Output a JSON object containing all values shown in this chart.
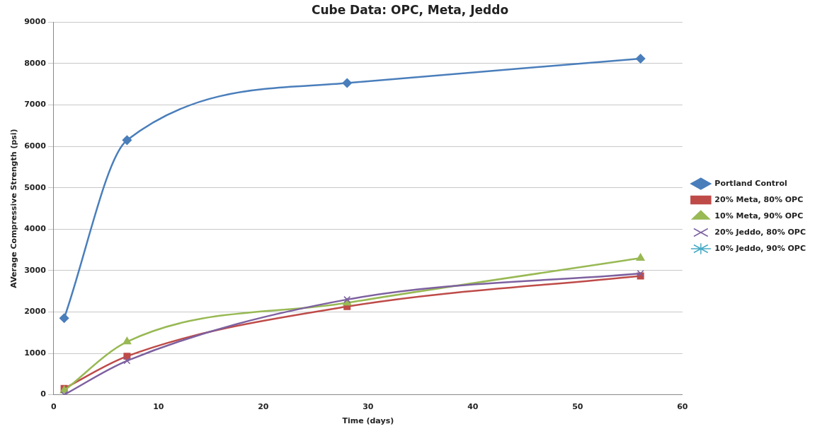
{
  "chart_data": {
    "type": "line",
    "title": "Cube Data: OPC, Meta, Jeddo",
    "xlabel": "Time (days)",
    "ylabel": "AVerage Compressive Strength (psi)",
    "x": [
      1,
      7,
      28,
      56
    ],
    "series": [
      {
        "name": "Portland Control",
        "color": "#4a7ebb",
        "marker": "diamond",
        "values": [
          1850,
          6150,
          7530,
          8120
        ]
      },
      {
        "name": "20% Meta, 80% OPC",
        "color": "#be4b48",
        "marker": "square",
        "values": [
          150,
          930,
          2130,
          2870
        ]
      },
      {
        "name": "10% Meta, 90% OPC",
        "color": "#98b954",
        "marker": "triangle",
        "values": [
          100,
          1280,
          2220,
          3300
        ]
      },
      {
        "name": "20% Jeddo, 80% OPC",
        "color": "#7d60a0",
        "marker": "cross",
        "values": [
          0,
          820,
          2300,
          2930
        ]
      },
      {
        "name": "10% Jeddo, 90% OPC",
        "color": "#46aac5",
        "marker": "star",
        "values": [
          null,
          null,
          null,
          null
        ]
      }
    ],
    "xlim": [
      0,
      60
    ],
    "xticks": [
      0,
      10,
      20,
      30,
      40,
      50,
      60
    ],
    "ylim": [
      0,
      9000
    ],
    "yticks": [
      0,
      1000,
      2000,
      3000,
      4000,
      5000,
      6000,
      7000,
      8000,
      9000
    ],
    "grid": "y",
    "legend": "right"
  }
}
